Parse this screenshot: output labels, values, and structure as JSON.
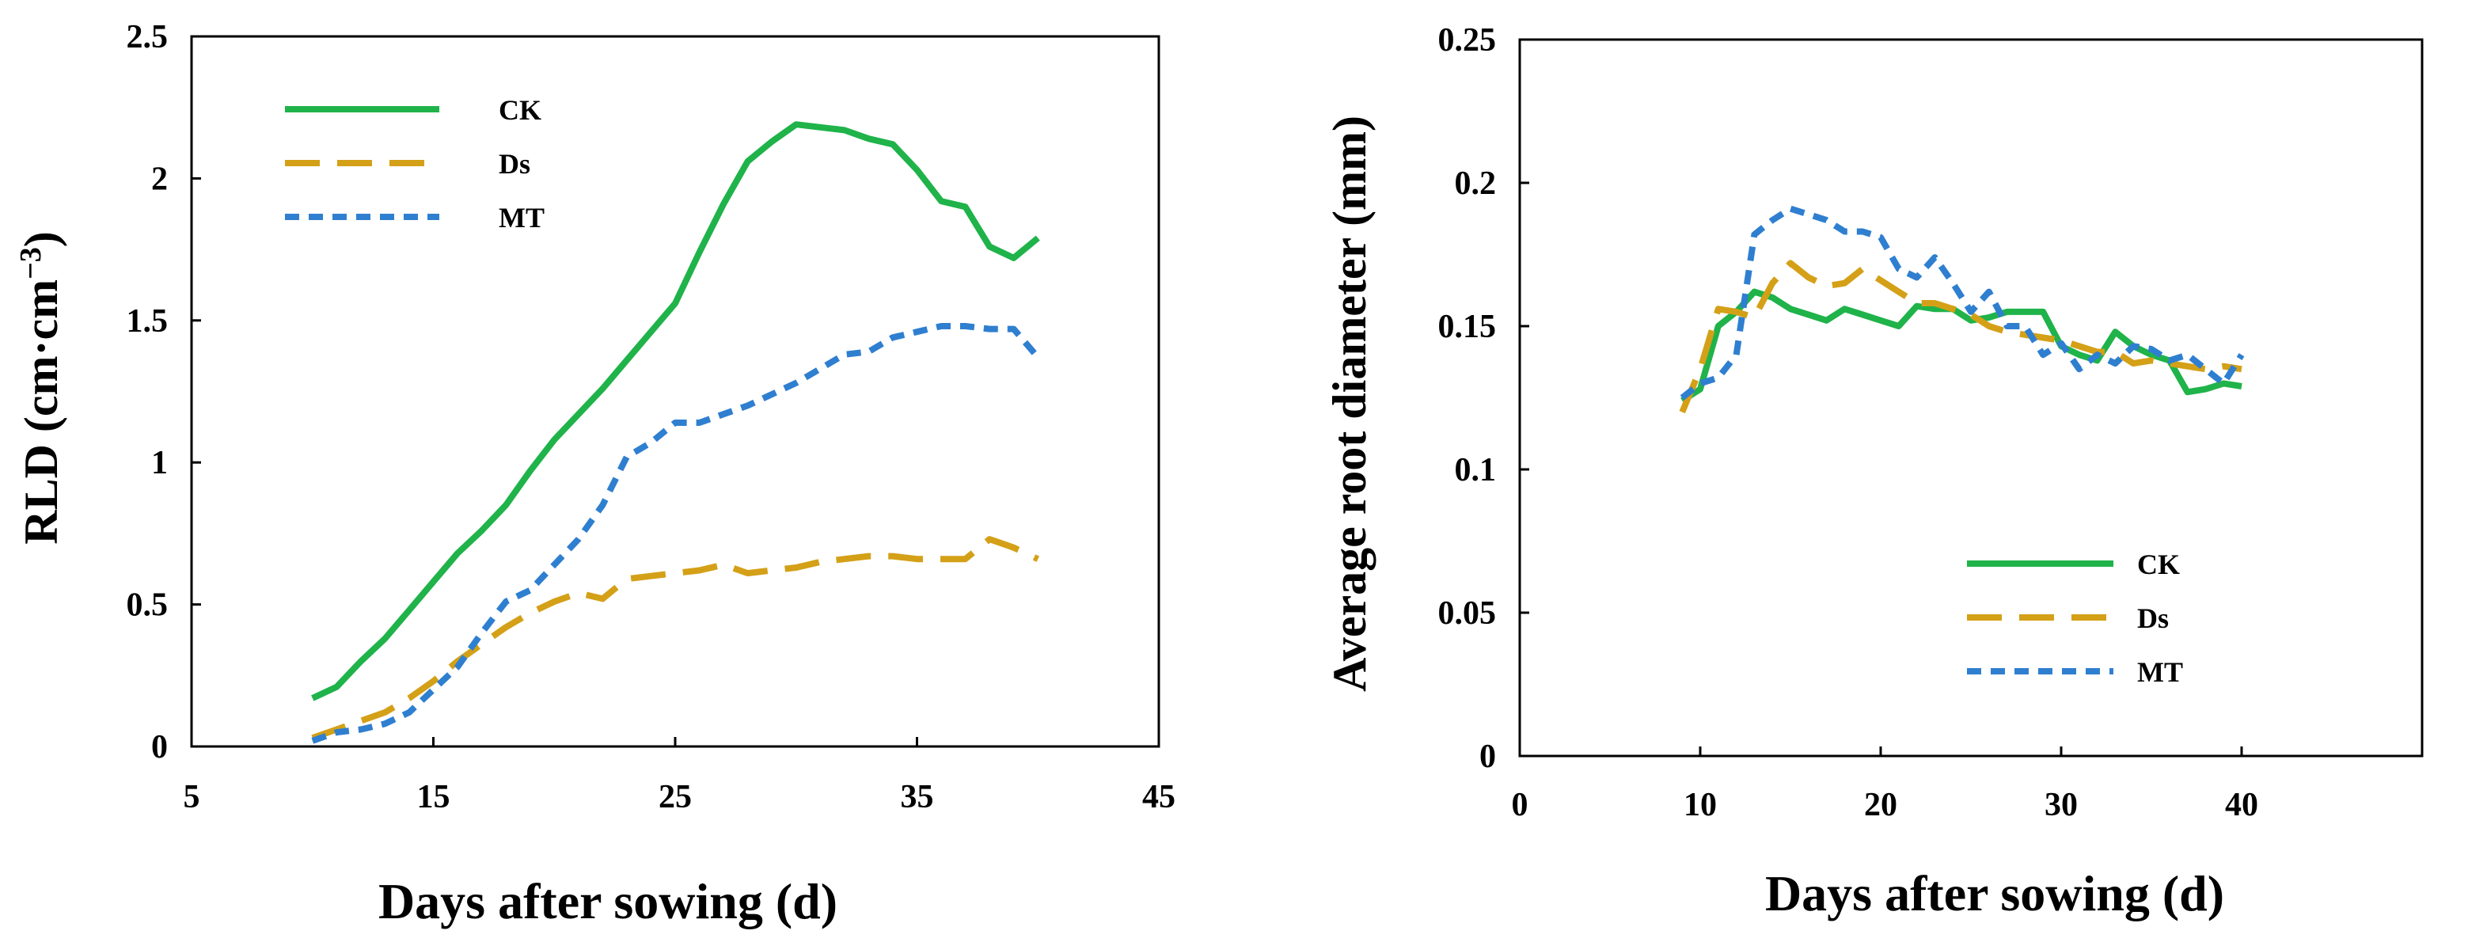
{
  "colors": {
    "CK": "#1fb34a",
    "Ds": "#d4a017",
    "MT": "#2f7fd0"
  },
  "chart_data": [
    {
      "type": "line",
      "title": "",
      "xlabel": "Days after sowing (d)",
      "ylabel": "RLD (cm·cm",
      "ylabel_sup": "−3",
      "ylabel_close": ")",
      "xlim": [
        5,
        45
      ],
      "ylim": [
        0,
        2.5
      ],
      "xticks": [
        5,
        15,
        25,
        35,
        45
      ],
      "yticks": [
        0,
        0.5,
        1,
        1.5,
        2,
        2.5
      ],
      "xtick_labels": [
        "5",
        "15",
        "25",
        "35",
        "45"
      ],
      "ytick_labels": [
        "0",
        "0.5",
        "1",
        "1.5",
        "2",
        "2.5"
      ],
      "legend_position": "top-left",
      "series": [
        {
          "name": "CK",
          "style": "solid",
          "x": [
            10,
            11,
            12,
            13,
            14,
            15,
            16,
            17,
            18,
            19,
            20,
            21,
            22,
            23,
            24,
            25,
            26,
            27,
            28,
            29,
            30,
            31,
            32,
            33,
            34,
            35,
            36,
            37,
            38,
            39,
            40
          ],
          "values": [
            0.17,
            0.21,
            0.3,
            0.38,
            0.48,
            0.58,
            0.68,
            0.76,
            0.85,
            0.97,
            1.08,
            1.17,
            1.26,
            1.36,
            1.46,
            1.56,
            1.74,
            1.91,
            2.06,
            2.13,
            2.19,
            2.18,
            2.17,
            2.14,
            2.12,
            2.03,
            1.92,
            1.9,
            1.76,
            1.72,
            1.79
          ]
        },
        {
          "name": "Ds",
          "style": "long-dash",
          "x": [
            10,
            11,
            12,
            13,
            14,
            15,
            16,
            17,
            18,
            19,
            20,
            21,
            22,
            23,
            24,
            25,
            26,
            27,
            28,
            29,
            30,
            31,
            32,
            33,
            34,
            35,
            36,
            37,
            38,
            39,
            40
          ],
          "values": [
            0.03,
            0.06,
            0.09,
            0.12,
            0.17,
            0.23,
            0.3,
            0.36,
            0.42,
            0.47,
            0.51,
            0.54,
            0.52,
            0.59,
            0.6,
            0.61,
            0.62,
            0.64,
            0.61,
            0.62,
            0.63,
            0.65,
            0.66,
            0.67,
            0.67,
            0.66,
            0.66,
            0.66,
            0.73,
            0.7,
            0.66
          ]
        },
        {
          "name": "MT",
          "style": "short-dash",
          "x": [
            10,
            11,
            12,
            13,
            14,
            15,
            16,
            17,
            18,
            19,
            20,
            21,
            22,
            23,
            24,
            25,
            26,
            27,
            28,
            29,
            30,
            31,
            32,
            33,
            34,
            35,
            36,
            37,
            38,
            39,
            40
          ],
          "values": [
            0.02,
            0.05,
            0.06,
            0.08,
            0.12,
            0.2,
            0.28,
            0.4,
            0.51,
            0.55,
            0.64,
            0.73,
            0.85,
            1.02,
            1.07,
            1.14,
            1.14,
            1.17,
            1.2,
            1.24,
            1.28,
            1.33,
            1.38,
            1.39,
            1.44,
            1.46,
            1.48,
            1.48,
            1.47,
            1.47,
            1.37
          ]
        }
      ]
    },
    {
      "type": "line",
      "title": "",
      "xlabel": "Days after sowing (d)",
      "ylabel": "Average root diameter (mm)",
      "xlim": [
        0,
        50
      ],
      "ylim": [
        0,
        0.25
      ],
      "xticks": [
        0,
        10,
        20,
        30,
        40
      ],
      "yticks": [
        0,
        0.05,
        0.1,
        0.15,
        0.2,
        0.25
      ],
      "xtick_labels": [
        "0",
        "10",
        "20",
        "30",
        "40"
      ],
      "ytick_labels": [
        "0",
        "0.05",
        "0.1",
        "0.15",
        "0.2",
        "0.25"
      ],
      "legend_position": "lower-center",
      "series": [
        {
          "name": "CK",
          "style": "solid",
          "x": [
            9,
            10,
            11,
            12,
            13,
            14,
            15,
            16,
            17,
            18,
            19,
            20,
            21,
            22,
            23,
            24,
            25,
            26,
            27,
            28,
            29,
            30,
            31,
            32,
            33,
            34,
            35,
            36,
            37,
            38,
            39,
            40
          ],
          "values": [
            0.124,
            0.128,
            0.15,
            0.155,
            0.162,
            0.16,
            0.156,
            0.154,
            0.152,
            0.156,
            0.154,
            0.152,
            0.15,
            0.157,
            0.156,
            0.156,
            0.152,
            0.153,
            0.155,
            0.155,
            0.155,
            0.143,
            0.14,
            0.138,
            0.148,
            0.143,
            0.14,
            0.138,
            0.127,
            0.128,
            0.13,
            0.129
          ]
        },
        {
          "name": "Ds",
          "style": "long-dash",
          "x": [
            9,
            10,
            11,
            12,
            13,
            14,
            15,
            16,
            17,
            18,
            19,
            20,
            21,
            22,
            23,
            24,
            25,
            26,
            27,
            28,
            29,
            30,
            31,
            32,
            33,
            34,
            35,
            36,
            37,
            38,
            39,
            40
          ],
          "values": [
            0.12,
            0.135,
            0.156,
            0.155,
            0.153,
            0.165,
            0.172,
            0.167,
            0.164,
            0.165,
            0.17,
            0.166,
            0.162,
            0.158,
            0.158,
            0.156,
            0.154,
            0.15,
            0.148,
            0.147,
            0.146,
            0.145,
            0.143,
            0.141,
            0.141,
            0.137,
            0.138,
            0.137,
            0.136,
            0.135,
            0.136,
            0.135
          ]
        },
        {
          "name": "MT",
          "style": "short-dash",
          "x": [
            9,
            10,
            11,
            12,
            13,
            14,
            15,
            16,
            17,
            18,
            19,
            20,
            21,
            22,
            23,
            24,
            25,
            26,
            27,
            28,
            29,
            30,
            31,
            32,
            33,
            34,
            35,
            36,
            37,
            38,
            39,
            40
          ],
          "values": [
            0.125,
            0.13,
            0.132,
            0.14,
            0.182,
            0.187,
            0.191,
            0.189,
            0.187,
            0.183,
            0.183,
            0.181,
            0.17,
            0.167,
            0.174,
            0.165,
            0.155,
            0.162,
            0.15,
            0.15,
            0.14,
            0.144,
            0.135,
            0.14,
            0.137,
            0.143,
            0.142,
            0.138,
            0.14,
            0.135,
            0.13,
            0.14
          ]
        }
      ]
    }
  ]
}
